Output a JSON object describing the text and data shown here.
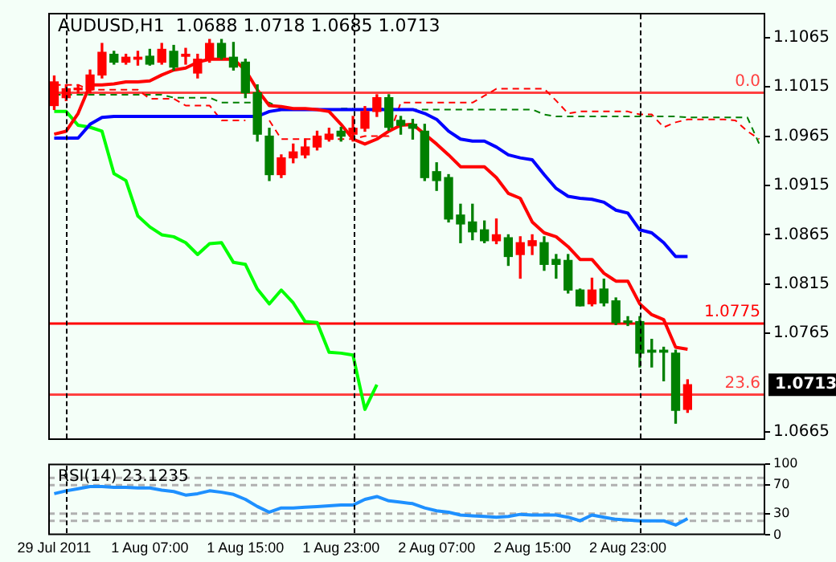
{
  "chart_data": [
    {
      "type": "candlestick",
      "title": "AUDUSD,H1  1.0688 1.0718 1.0685 1.0713",
      "categories": [
        null,
        null,
        null,
        null,
        null,
        null,
        null,
        null,
        null,
        null,
        null,
        null,
        null,
        null,
        null,
        null,
        null,
        null,
        null,
        null,
        null,
        null,
        null,
        null,
        null,
        null,
        null,
        null,
        null,
        null,
        null,
        null,
        null,
        null,
        null,
        null,
        null,
        null,
        null,
        null,
        null,
        null,
        null,
        null,
        null,
        null,
        null,
        null,
        null,
        null,
        null,
        null,
        null,
        null,
        null,
        null,
        null,
        null,
        null,
        null
      ],
      "ohlc": [
        [
          1.0996,
          1.1026,
          1.0992,
          1.102
        ],
        [
          1.1004,
          1.1017,
          1.1001,
          1.1013
        ],
        [
          1.1012,
          1.1017,
          1.1009,
          1.1013
        ],
        [
          1.1012,
          1.1032,
          1.1009,
          1.1027
        ],
        [
          1.1027,
          1.1059,
          1.1024,
          1.105
        ],
        [
          1.1048,
          1.1051,
          1.1038,
          1.104
        ],
        [
          1.104,
          1.1048,
          1.1038,
          1.1045
        ],
        [
          1.1043,
          1.1051,
          1.1037,
          1.1045
        ],
        [
          1.1046,
          1.1053,
          1.1037,
          1.1038
        ],
        [
          1.104,
          1.1059,
          1.1038,
          1.1053
        ],
        [
          1.1051,
          1.1057,
          1.1032,
          1.1035
        ],
        [
          1.1046,
          1.1054,
          1.1038,
          1.1048
        ],
        [
          1.1029,
          1.1048,
          1.1024,
          1.1043
        ],
        [
          1.1043,
          1.1063,
          1.104,
          1.1059
        ],
        [
          1.1059,
          1.1063,
          1.1043,
          1.1045
        ],
        [
          1.1045,
          1.106,
          1.1032,
          1.1035
        ],
        [
          1.104,
          1.1043,
          1.1004,
          1.1009
        ],
        [
          1.1009,
          1.1017,
          1.096,
          1.0967
        ],
        [
          1.0965,
          1.0973,
          1.092,
          1.0926
        ],
        [
          1.0926,
          1.0946,
          1.0923,
          1.0943
        ],
        [
          1.0943,
          1.0957,
          1.0938,
          1.0949
        ],
        [
          1.0946,
          1.0962,
          1.0943,
          1.0954
        ],
        [
          1.0954,
          1.097,
          1.0951,
          1.0965
        ],
        [
          1.0962,
          1.0973,
          1.096,
          1.0967
        ],
        [
          1.097,
          1.0974,
          1.096,
          1.0965
        ],
        [
          1.0967,
          1.0985,
          1.096,
          1.0973
        ],
        [
          1.0973,
          1.0995,
          1.097,
          1.099
        ],
        [
          1.099,
          1.1007,
          1.0985,
          1.1004
        ],
        [
          1.1004,
          1.1007,
          1.0971,
          1.0974
        ],
        [
          1.0981,
          1.0985,
          1.0967,
          1.0976
        ],
        [
          1.0977,
          1.0982,
          1.0962,
          1.0973
        ],
        [
          1.097,
          1.0977,
          1.092,
          1.0923
        ],
        [
          1.0929,
          1.0938,
          1.091,
          1.092
        ],
        [
          1.0923,
          1.0926,
          1.0878,
          1.0881
        ],
        [
          1.0885,
          1.0896,
          1.0857,
          1.0876
        ],
        [
          1.0878,
          1.0896,
          1.086,
          1.0868
        ],
        [
          1.087,
          1.0879,
          1.0857,
          1.0859
        ],
        [
          1.0859,
          1.0881,
          1.0856,
          1.0865
        ],
        [
          1.0862,
          1.0865,
          1.0834,
          1.0843
        ],
        [
          1.0845,
          1.0863,
          1.0821,
          1.0857
        ],
        [
          1.0854,
          1.0865,
          1.0845,
          1.0859
        ],
        [
          1.0857,
          1.0863,
          1.0829,
          1.0835
        ],
        [
          1.084,
          1.0845,
          1.0821,
          1.0835
        ],
        [
          1.0839,
          1.0845,
          1.0806,
          1.0809
        ],
        [
          1.0809,
          1.081,
          1.0793,
          1.0793
        ],
        [
          1.0795,
          1.0821,
          1.0793,
          1.0809
        ],
        [
          1.081,
          1.082,
          1.0793,
          1.0796
        ],
        [
          1.0798,
          1.0801,
          1.0774,
          1.0776
        ],
        [
          1.0777,
          1.0782,
          1.0773,
          1.0776
        ],
        [
          1.0777,
          1.0782,
          1.0731,
          1.0745
        ],
        [
          1.0748,
          1.0759,
          1.0731,
          1.0746
        ],
        [
          1.0748,
          1.0751,
          1.0717,
          1.0746
        ],
        [
          1.0745,
          1.0748,
          1.0674,
          1.0687
        ],
        [
          1.0688,
          1.0718,
          1.0685,
          1.0713
        ],
        null,
        null,
        null,
        null,
        null,
        null
      ],
      "colors": [
        "#ff0000",
        "#ff0000",
        "#ff0000",
        "#ff0000",
        "#ff0000",
        "#008000",
        "#ff0000",
        "#ff0000",
        "#008000",
        "#ff0000",
        "#008000",
        "#ff0000",
        "#ff0000",
        "#ff0000",
        "#008000",
        "#008000",
        "#008000",
        "#008000",
        "#008000",
        "#ff0000",
        "#ff0000",
        "#ff0000",
        "#ff0000",
        "#ff0000",
        "#008000",
        "#ff0000",
        "#ff0000",
        "#ff0000",
        "#008000",
        "#008000",
        "#008000",
        "#008000",
        "#008000",
        "#008000",
        "#008000",
        "#008000",
        "#008000",
        "#ff0000",
        "#008000",
        "#ff0000",
        "#ff0000",
        "#008000",
        "#008000",
        "#008000",
        "#008000",
        "#ff0000",
        "#008000",
        "#008000",
        "#008000",
        "#008000",
        "#008000",
        "#008000",
        "#008000",
        "#ff0000",
        null,
        null,
        null,
        null,
        null,
        null
      ],
      "series": [
        {
          "type": "line",
          "color": "#ff0000",
          "values": [
            1.0967,
            1.097,
            1.0988,
            1.1017,
            1.1017,
            1.1018,
            1.102,
            1.102,
            1.1021,
            1.1027,
            1.1032,
            1.1034,
            1.104,
            1.1043,
            1.1043,
            1.1043,
            1.1032,
            1.1012,
            1.0996,
            1.0995,
            1.0993,
            1.0993,
            1.0992,
            1.099,
            1.0977,
            1.0962,
            1.0957,
            1.0962,
            1.097,
            1.0976,
            1.0977,
            1.0967,
            1.0957,
            1.0946,
            1.0934,
            1.0934,
            1.0934,
            1.0923,
            1.0907,
            1.0902,
            1.0878,
            1.0867,
            1.0863,
            1.0853,
            1.084,
            1.084,
            1.0826,
            1.0818,
            1.0818,
            1.0795,
            1.0784,
            1.0779,
            1.0751,
            1.0749,
            null,
            null,
            null,
            null,
            null,
            null
          ]
        },
        {
          "type": "line",
          "color": "#0000ff",
          "values": [
            1.0963,
            1.0963,
            1.0963,
            1.0977,
            1.0984,
            1.0985,
            1.0985,
            1.0985,
            1.0985,
            1.0985,
            1.0985,
            1.0985,
            1.0985,
            1.0985,
            1.0985,
            1.0985,
            1.0985,
            1.0985,
            1.099,
            1.0992,
            1.0992,
            1.0992,
            1.0992,
            1.0992,
            1.0992,
            1.0992,
            1.0992,
            1.0992,
            1.0992,
            1.0992,
            1.0992,
            1.0988,
            1.0982,
            1.097,
            1.0962,
            1.096,
            1.096,
            1.0954,
            1.0946,
            1.0943,
            1.0941,
            1.0926,
            1.0912,
            1.0904,
            1.0902,
            1.0901,
            1.0898,
            1.089,
            1.0887,
            1.087,
            1.0867,
            1.0857,
            1.0843,
            1.0843,
            null,
            null,
            null,
            null,
            null,
            null
          ]
        },
        {
          "type": "line",
          "color": "#00ff00",
          "values": [
            1.099,
            1.099,
            1.0976,
            1.0974,
            1.097,
            1.0927,
            1.092,
            1.0884,
            1.0873,
            1.0865,
            1.0863,
            1.0857,
            1.0845,
            1.0856,
            1.0857,
            1.0837,
            1.0835,
            1.081,
            1.0795,
            1.0809,
            1.0796,
            1.0777,
            1.0776,
            1.0746,
            1.0745,
            1.0743,
            1.0688,
            1.0713,
            null,
            null,
            null,
            null,
            null,
            null,
            null,
            null,
            null,
            null,
            null,
            null,
            null,
            null,
            null,
            null,
            null,
            null,
            null,
            null,
            null,
            null,
            null,
            null,
            null,
            null,
            null,
            null,
            null,
            null,
            null,
            null
          ]
        },
        {
          "type": "line",
          "color": "#ff0000",
          "line_style": "dashed",
          "values": [
            1.1017,
            1.1017,
            1.1017,
            1.1012,
            1.1012,
            1.1012,
            1.1012,
            1.1012,
            1.1003,
            1.1003,
            1.1003,
            1.0996,
            1.0996,
            1.0996,
            1.0981,
            1.0981,
            1.0981,
            null,
            1.0981,
            1.0962,
            1.0962,
            1.0962,
            1.0962,
            1.0962,
            1.0962,
            1.0962,
            1.0965,
            1.0965,
            1.0965,
            1.0999,
            1.0999,
            1.0999,
            1.0999,
            1.0999,
            1.0999,
            1.0999,
            1.1006,
            1.1013,
            1.1013,
            1.1013,
            1.1013,
            1.1013,
            1.1001,
            1.0988,
            1.099,
            1.099,
            1.099,
            1.099,
            1.099,
            1.0987,
            1.0987,
            1.0974,
            1.0979,
            1.0982,
            1.0982,
            1.0982,
            1.0982,
            1.0981,
            1.097,
            1.0962
          ]
        },
        {
          "type": "line",
          "color": "#008000",
          "line_style": "dashed",
          "values": [
            1.1007,
            1.1007,
            1.1007,
            1.1007,
            1.1007,
            1.1007,
            1.1007,
            1.1007,
            1.1007,
            1.1007,
            1.1004,
            1.1004,
            1.1004,
            1.1004,
            1.0999,
            1.0999,
            1.0999,
            1.0999,
            1.0999,
            1.0993,
            null,
            null,
            null,
            null,
            1.0993,
            1.0993,
            null,
            1.0993,
            1.0993,
            1.0992,
            1.0992,
            1.0992,
            1.0992,
            1.0992,
            1.0992,
            1.0992,
            1.0992,
            1.0992,
            1.0992,
            1.0992,
            1.0992,
            1.0987,
            1.0985,
            1.0985,
            1.0985,
            1.0985,
            1.0985,
            1.0985,
            1.0985,
            1.0985,
            1.0985,
            1.0985,
            1.0985,
            1.0984,
            1.0984,
            1.0984,
            1.0984,
            1.0984,
            1.0984,
            1.0957
          ]
        }
      ],
      "ylim": [
        1.0657,
        1.109
      ],
      "yticks": [
        1.1065,
        1.1015,
        1.0965,
        1.0915,
        1.0865,
        1.0815,
        1.0765,
        1.0665
      ],
      "tick_labels": "y",
      "marker": "none",
      "grid": "x",
      "ref_lines": [
        {
          "axis": "y",
          "value": 1.0775,
          "label": "1.0775",
          "color": "#ff0000"
        },
        {
          "axis": "y",
          "value": 1.1009,
          "color": "#ff4040"
        },
        {
          "axis": "y",
          "value": 1.0703,
          "color": "#ff4040"
        }
      ],
      "annotations": [
        {
          "text": "0.0",
          "y": 1.1009
        },
        {
          "text": "23.6",
          "y": 1.0703
        },
        "1.0713"
      ]
    },
    {
      "type": "line",
      "title": "RSI(14) 23.1235",
      "categories": [
        "29 Jul 2011",
        null,
        null,
        null,
        null,
        null,
        null,
        null,
        "1 Aug 07:00",
        null,
        null,
        null,
        null,
        null,
        null,
        null,
        "1 Aug 15:00",
        null,
        null,
        null,
        null,
        null,
        null,
        null,
        "1 Aug 23:00",
        null,
        null,
        null,
        null,
        null,
        null,
        null,
        "2 Aug 07:00",
        null,
        null,
        null,
        null,
        null,
        null,
        null,
        "2 Aug 15:00",
        null,
        null,
        null,
        null,
        null,
        null,
        null,
        "2 Aug 23:00",
        null,
        null,
        null,
        null,
        null,
        null,
        null,
        null,
        null,
        null,
        null
      ],
      "series": [
        {
          "color": "#1e90ff",
          "values": [
            58,
            62,
            65,
            68,
            68,
            67,
            67,
            66,
            66,
            63,
            61,
            56,
            58,
            62,
            60,
            57,
            50,
            40,
            32,
            38,
            38,
            39,
            40,
            41,
            42,
            42,
            50,
            54,
            48,
            46,
            44,
            38,
            34,
            32,
            28,
            27,
            26,
            25,
            26,
            29,
            28,
            28,
            28,
            25,
            20,
            28,
            25,
            22,
            21,
            20,
            20,
            20,
            14,
            23,
            null,
            null,
            null,
            null,
            null,
            null
          ]
        }
      ],
      "ylim": [
        0,
        100
      ],
      "yticks": [
        100,
        70,
        30,
        0
      ],
      "marker": "none",
      "grid": "x",
      "ref_lines": [
        {
          "axis": "y",
          "value": 80,
          "color": "#b0b0b0",
          "line_style": "dashed"
        },
        {
          "axis": "y",
          "value": 70,
          "color": "#b0b0b0",
          "line_style": "dashed"
        },
        {
          "axis": "y",
          "value": 30,
          "color": "#b0b0b0",
          "line_style": "dashed"
        },
        {
          "axis": "y",
          "value": 20,
          "color": "#b0b0b0",
          "line_style": "dashed"
        }
      ]
    }
  ]
}
